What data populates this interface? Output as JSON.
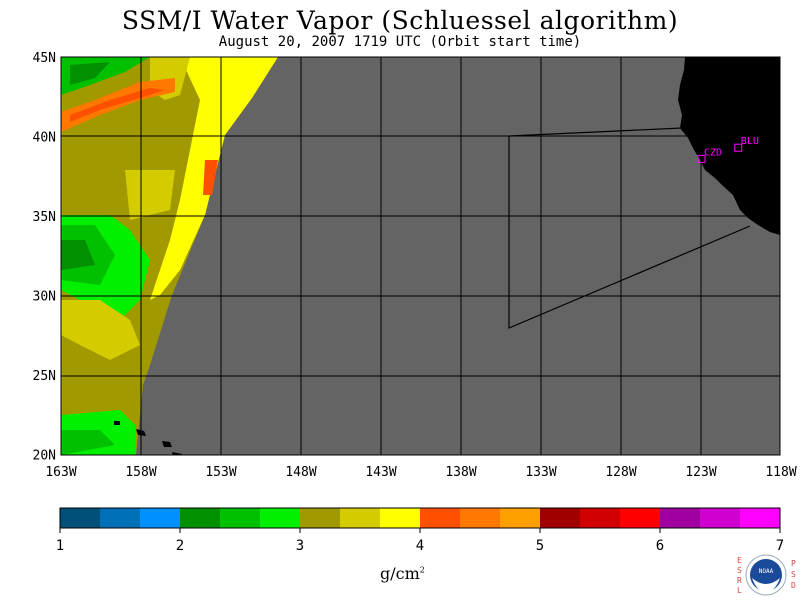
{
  "title": "SSM/I Water Vapor (Schluessel algorithm)",
  "subtitle": "August 20, 2007  1719 UTC  (Orbit start time)",
  "map": {
    "lon_labels": [
      "163W",
      "158W",
      "153W",
      "148W",
      "143W",
      "138W",
      "133W",
      "128W",
      "123W",
      "118W"
    ],
    "lat_labels": [
      "45N",
      "40N",
      "35N",
      "30N",
      "25N",
      "20N"
    ],
    "lon_range": [
      -163,
      -118
    ],
    "lat_range": [
      20,
      45
    ],
    "stations": [
      {
        "label": "CZD",
        "lon": -123.0,
        "lat": 38.6
      },
      {
        "label": "BLU",
        "lon": -120.7,
        "lat": 39.3
      }
    ],
    "land_color": "#000000",
    "no_data_color": "#646464",
    "station_color": "#ff00ff"
  },
  "colorbar": {
    "tick_labels": [
      "1",
      "2",
      "3",
      "4",
      "5",
      "6",
      "7"
    ],
    "units_base": "g/cm",
    "units_exp": "2",
    "range": [
      1,
      7
    ],
    "colors": [
      "#00507a",
      "#0070b8",
      "#0090ff",
      "#009000",
      "#00c000",
      "#00f000",
      "#a09a00",
      "#d4cc00",
      "#ffff00",
      "#ff5000",
      "#ff7800",
      "#ffa000",
      "#a00000",
      "#d00000",
      "#ff0000",
      "#a000a0",
      "#d000d0",
      "#ff00ff"
    ]
  },
  "logo": {
    "text": "NOAA",
    "left_letters": [
      "E",
      "S",
      "R",
      "L"
    ],
    "right_letters": [
      "P",
      "S",
      "D"
    ]
  }
}
